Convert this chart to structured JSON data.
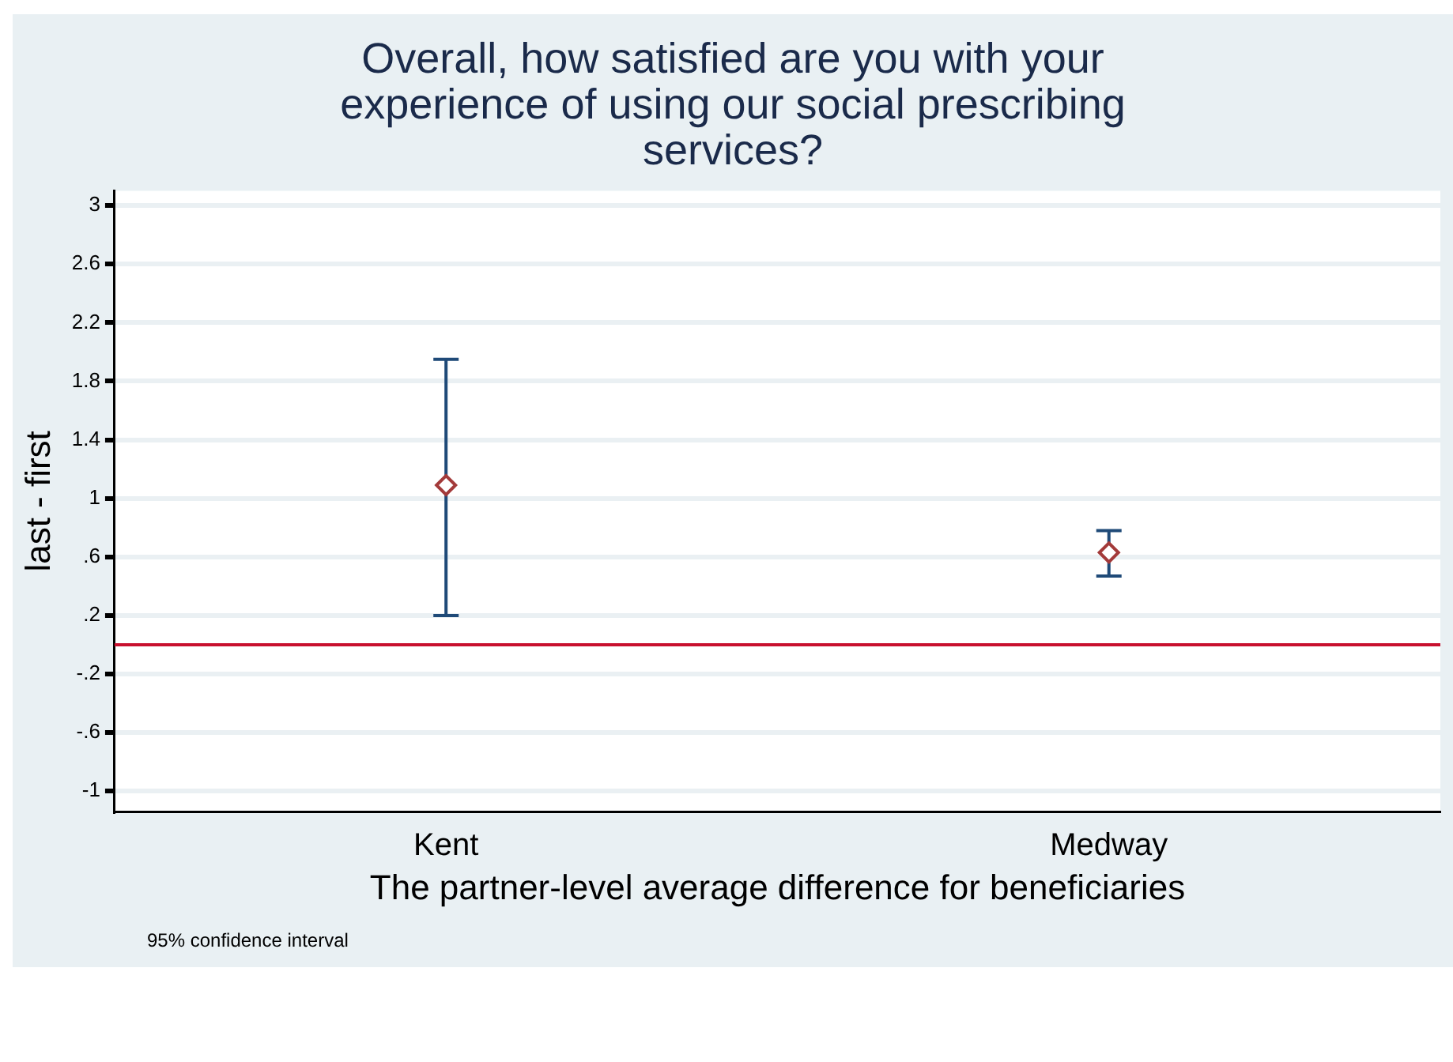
{
  "chart_data": {
    "type": "scatter",
    "title": "Overall, how satisfied are you with your experience of using our social prescribing services?",
    "xlabel": "The partner-level average difference for beneficiaries",
    "ylabel": "last - first",
    "categories": [
      "Kent",
      "Medway"
    ],
    "series": [
      {
        "color": "#a33a3a",
        "values": [
          1.09,
          0.63
        ],
        "errors": [
          [
            0.2,
            1.95
          ],
          [
            0.47,
            0.78
          ]
        ]
      }
    ],
    "ylim": [
      -1.14,
      3.1
    ],
    "yticks": [
      {
        "value": -1,
        "label": "-1"
      },
      {
        "value": -0.6,
        "label": "-.6"
      },
      {
        "value": -0.2,
        "label": "-.2"
      },
      {
        "value": 0.2,
        "label": ".2"
      },
      {
        "value": 0.6,
        "label": ".6"
      },
      {
        "value": 1,
        "label": "1"
      },
      {
        "value": 1.4,
        "label": "1.4"
      },
      {
        "value": 1.8,
        "label": "1.8"
      },
      {
        "value": 2.2,
        "label": "2.2"
      },
      {
        "value": 2.6,
        "label": "2.6"
      },
      {
        "value": 3,
        "label": "3"
      }
    ],
    "ref_lines": [
      {
        "axis": "y",
        "value": 0,
        "color": "#c8102e"
      }
    ],
    "grid": "y",
    "legend": false,
    "marker": "diamond",
    "annotations": [
      "95% confidence interval"
    ]
  }
}
